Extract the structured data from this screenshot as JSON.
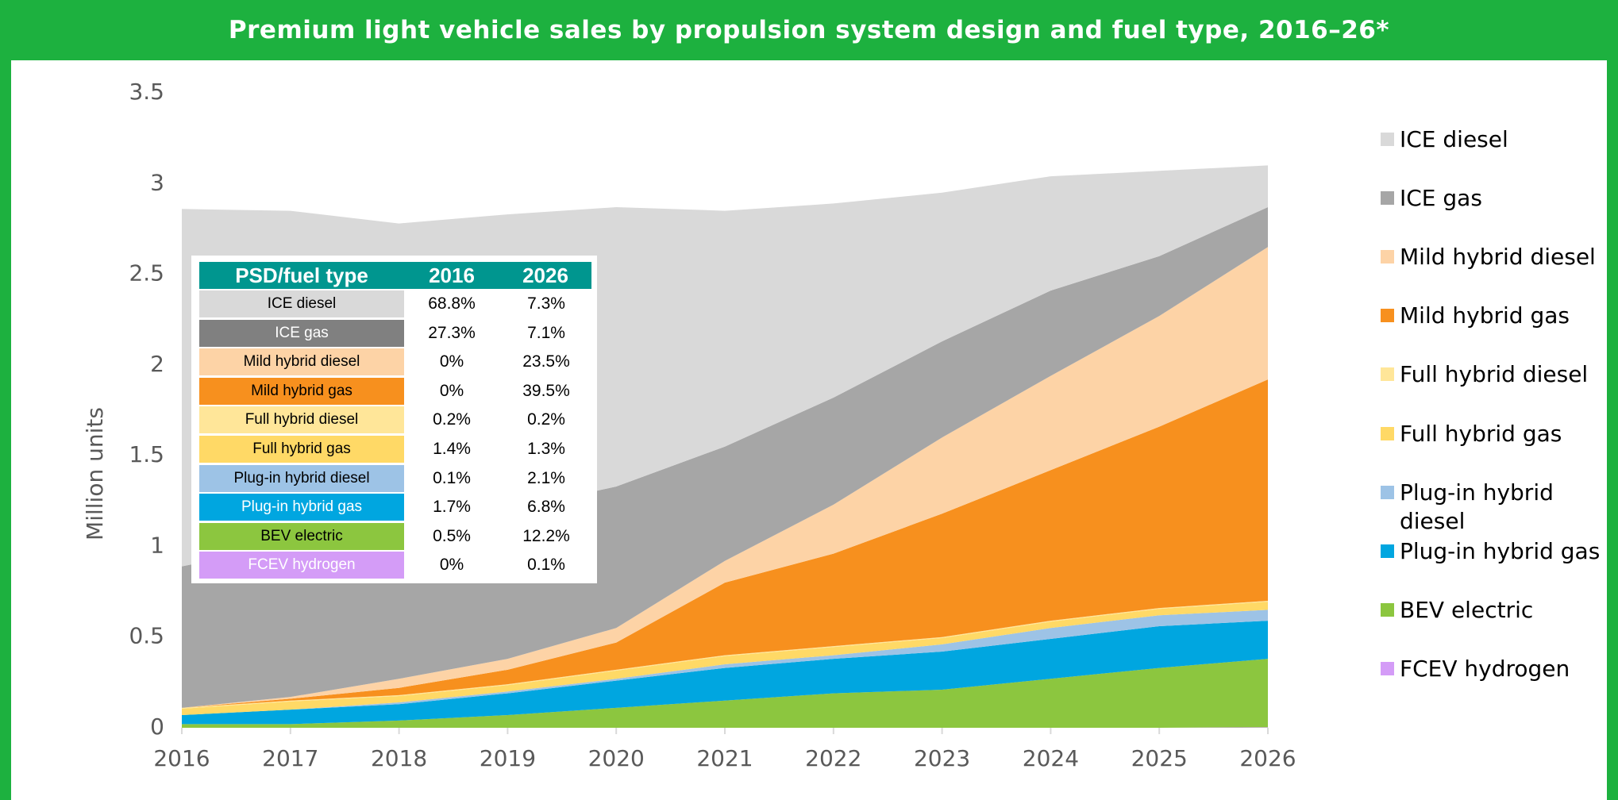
{
  "chart_data": {
    "type": "stacked_area",
    "title": "Premium light vehicle sales by propulsion system design and fuel type, 2016–26*",
    "y_label": "Million units",
    "x": [
      2016,
      2017,
      2018,
      2019,
      2020,
      2021,
      2022,
      2023,
      2024,
      2025,
      2026
    ],
    "xlim": [
      2016,
      2026
    ],
    "xticks": [
      2016,
      2017,
      2018,
      2019,
      2020,
      2021,
      2022,
      2023,
      2024,
      2025,
      2026
    ],
    "ylim": [
      0,
      3.5
    ],
    "yticks": [
      0,
      0.5,
      1,
      1.5,
      2,
      2.5,
      3,
      3.5
    ],
    "grid": true,
    "legend": "right",
    "series": [
      {
        "name": "FCEV hydrogen",
        "color": "#d49cf7",
        "values": [
          0,
          0,
          0,
          0,
          0,
          0,
          0,
          0,
          0,
          0,
          0.003
        ]
      },
      {
        "name": "BEV electric",
        "color": "#8cc63f",
        "values": [
          0.02,
          0.02,
          0.04,
          0.07,
          0.11,
          0.15,
          0.19,
          0.21,
          0.27,
          0.33,
          0.377
        ]
      },
      {
        "name": "Plug-in hybrid gas",
        "color": "#00a6e0",
        "values": [
          0.05,
          0.08,
          0.09,
          0.12,
          0.15,
          0.18,
          0.19,
          0.21,
          0.22,
          0.23,
          0.21
        ]
      },
      {
        "name": "Plug-in hybrid diesel",
        "color": "#9dc3e6",
        "values": [
          0,
          0,
          0.01,
          0.01,
          0.01,
          0.02,
          0.02,
          0.04,
          0.06,
          0.06,
          0.06
        ]
      },
      {
        "name": "Full hybrid gas",
        "color": "#ffd966",
        "values": [
          0.035,
          0.045,
          0.035,
          0.035,
          0.045,
          0.045,
          0.045,
          0.035,
          0.035,
          0.035,
          0.045
        ]
      },
      {
        "name": "Full hybrid diesel",
        "color": "#ffe699",
        "values": [
          0.005,
          0.005,
          0.005,
          0.005,
          0.005,
          0.005,
          0.005,
          0.005,
          0.005,
          0.005,
          0.005
        ]
      },
      {
        "name": "Mild hybrid gas",
        "color": "#f7901e",
        "values": [
          0,
          0.01,
          0.04,
          0.08,
          0.15,
          0.4,
          0.51,
          0.68,
          0.83,
          1.0,
          1.22
        ]
      },
      {
        "name": "Mild hybrid diesel",
        "color": "#fdd3a6",
        "values": [
          0,
          0.01,
          0.05,
          0.06,
          0.08,
          0.12,
          0.27,
          0.42,
          0.52,
          0.61,
          0.73
        ]
      },
      {
        "name": "ICE gas",
        "color": "#a6a6a6",
        "values": [
          0.78,
          0.84,
          0.83,
          0.82,
          0.78,
          0.63,
          0.59,
          0.53,
          0.47,
          0.33,
          0.22
        ]
      },
      {
        "name": "ICE diesel",
        "color": "#d9d9d9",
        "values": [
          1.97,
          1.84,
          1.68,
          1.63,
          1.54,
          1.3,
          1.07,
          0.82,
          0.63,
          0.47,
          0.23
        ]
      }
    ],
    "table": {
      "header": [
        "PSD/fuel type",
        "2016",
        "2026"
      ],
      "header_color": "#00968f",
      "rows": [
        [
          "ICE diesel",
          "68.8%",
          "7.3%"
        ],
        [
          "ICE gas",
          "27.3%",
          "7.1%"
        ],
        [
          "Mild hybrid diesel",
          "0%",
          "23.5%"
        ],
        [
          "Mild hybrid gas",
          "0%",
          "39.5%"
        ],
        [
          "Full hybrid diesel",
          "0.2%",
          "0.2%"
        ],
        [
          "Full hybrid gas",
          "1.4%",
          "1.3%"
        ],
        [
          "Plug-in hybrid diesel",
          "0.1%",
          "2.1%"
        ],
        [
          "Plug-in hybrid gas",
          "1.7%",
          "6.8%"
        ],
        [
          "BEV electric",
          "0.5%",
          "12.2%"
        ],
        [
          "FCEV hydrogen",
          "0%",
          "0.1%"
        ]
      ],
      "row_colors": [
        "#d9d9d9",
        "#808080",
        "#fdd3a6",
        "#f7901e",
        "#ffe699",
        "#ffd966",
        "#9dc3e6",
        "#00a6e0",
        "#8cc63f",
        "#d49cf7"
      ],
      "row_text_colors": [
        "#000",
        "#fff",
        "#000",
        "#000",
        "#000",
        "#000",
        "#000",
        "#fff",
        "#000",
        "#fff"
      ]
    }
  }
}
